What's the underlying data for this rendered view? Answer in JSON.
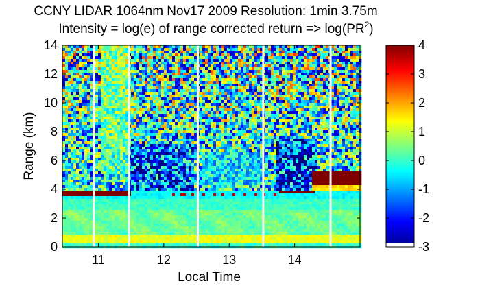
{
  "chart_data": {
    "type": "heatmap",
    "title": "CCNY LIDAR 1064nm Nov17 2009 Resolution: 1min 3.75m",
    "subtitle_prefix": "Intensity = log(e) of range corrected return => log(PR",
    "subtitle_sup": "2",
    "subtitle_suffix": ")",
    "xlabel": "Local Time",
    "ylabel": "Range (km)",
    "xlim": [
      10.45,
      15.0
    ],
    "ylim": [
      0,
      14
    ],
    "xticks": [
      11,
      12,
      13,
      14
    ],
    "xtick_labels": [
      "11",
      "12",
      "13",
      "14"
    ],
    "yticks": [
      0,
      2,
      4,
      6,
      8,
      10,
      12,
      14
    ],
    "ytick_labels": [
      "0",
      "2",
      "4",
      "6",
      "8",
      "10",
      "12",
      "14"
    ],
    "colorbar": {
      "range": [
        -3,
        4
      ],
      "ticks": [
        -3,
        -2,
        -1,
        0,
        1,
        2,
        3,
        4
      ],
      "tick_labels": [
        "-3",
        "-2",
        "-1",
        "0",
        "1",
        "2",
        "3",
        "4"
      ],
      "colormap": "jet"
    },
    "data_gaps_local_time": [
      10.93,
      11.47,
      12.52,
      13.52,
      14.55
    ],
    "features": [
      {
        "name": "boundary-layer",
        "from_km": 0.0,
        "to_km": 3.5,
        "level": 0.2
      },
      {
        "name": "surface-layer",
        "from_km": 0.4,
        "to_km": 0.8,
        "level": 1.3
      },
      {
        "name": "cloud-layer-1",
        "time_from": 10.45,
        "time_to": 11.5,
        "at_km": 3.65,
        "level": 4
      },
      {
        "name": "cloud-layer-2",
        "time_from": 13.75,
        "time_to": 14.3,
        "at_km": 3.8,
        "level": 4
      },
      {
        "name": "cloud-layer-3",
        "time_from": 14.25,
        "time_to": 15.0,
        "at_km": 4.7,
        "level": 4
      }
    ]
  }
}
